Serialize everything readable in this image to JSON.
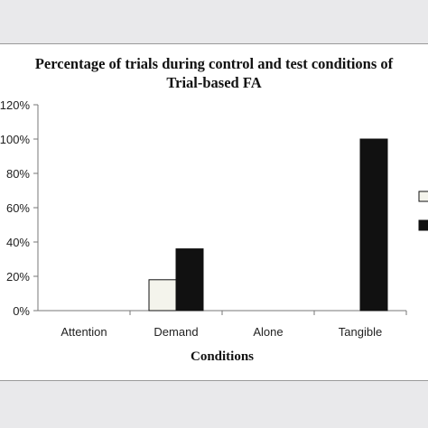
{
  "chart_data": {
    "type": "bar",
    "title_lines": [
      "Percentage of trials during control and test conditions of",
      "Trial-based FA"
    ],
    "xlabel": "Conditions",
    "ylabel": "",
    "categories": [
      "Attention",
      "Demand",
      "Alone",
      "Tangible"
    ],
    "y_tick_labels": [
      "0%",
      "20%",
      "40%",
      "60%",
      "80%",
      "100%",
      "120%"
    ],
    "ylim": [
      0,
      120
    ],
    "grid": false,
    "legend_placement": "right, partially cut off",
    "series": [
      {
        "color": "#f4f4ec",
        "values": [
          0,
          18,
          0,
          0
        ]
      },
      {
        "color": "#111111",
        "values": [
          0,
          36,
          0,
          100
        ]
      }
    ]
  }
}
